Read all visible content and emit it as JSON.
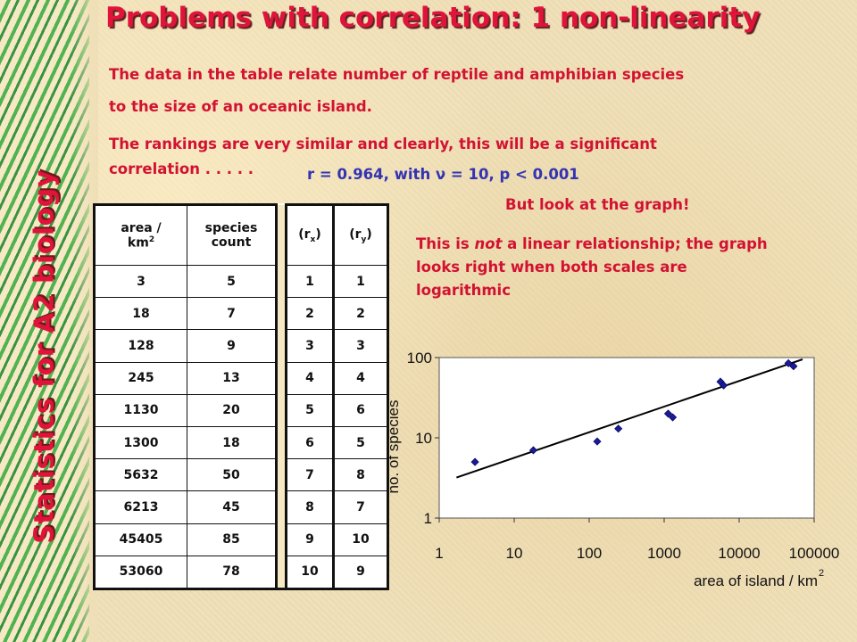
{
  "slide": {
    "title": "Problems with correlation: 1 non-linearity",
    "side_title": "Statistics for A2 biology",
    "para1_line1": "The data in the table relate number of reptile and amphibian species",
    "para1_line2": "to the size of an oceanic island.",
    "para2_line1": "The rankings are very similar and clearly, this will be a significant",
    "para2_line2": "correlation . . . . .",
    "stat": "r =  0.964, with ν = 10, p < 0.001",
    "look": "But look at the graph!",
    "note_line1": "This is not a linear relationship; the graph",
    "note_line2": "looks right when both scales are",
    "note_line3": "logarithmic",
    "colors": {
      "title": "#e0143a",
      "body": "#d21232",
      "stat": "#3333b3",
      "stripes": "#2f8f3a"
    }
  },
  "table": {
    "headers": {
      "area_top": "area /",
      "area_unit": "km",
      "area_sup": "2",
      "species_top": "species",
      "species_bottom": "count",
      "rx": "(r",
      "rx_sub": "x",
      "rx_close": ")",
      "ry": "(r",
      "ry_sub": "y",
      "ry_close": ")"
    },
    "rows": [
      [
        "3",
        "5",
        "1",
        "1"
      ],
      [
        "18",
        "7",
        "2",
        "2"
      ],
      [
        "128",
        "9",
        "3",
        "3"
      ],
      [
        "245",
        "13",
        "4",
        "4"
      ],
      [
        "1130",
        "20",
        "5",
        "6"
      ],
      [
        "1300",
        "18",
        "6",
        "5"
      ],
      [
        "5632",
        "50",
        "7",
        "8"
      ],
      [
        "6213",
        "45",
        "8",
        "7"
      ],
      [
        "45405",
        "85",
        "9",
        "10"
      ],
      [
        "53060",
        "78",
        "10",
        "9"
      ]
    ]
  },
  "chart_data": {
    "type": "scatter",
    "xscale": "log",
    "yscale": "log",
    "xlabel": "area of island / km",
    "xlabel_sup": "2",
    "ylabel": "no. of species",
    "xlim": [
      1,
      100000
    ],
    "ylim": [
      1,
      100
    ],
    "xticks": [
      "1",
      "10",
      "100",
      "1000",
      "10000",
      "100000"
    ],
    "yticks": [
      "1",
      "10",
      "100"
    ],
    "points": [
      {
        "x": 3,
        "y": 5
      },
      {
        "x": 18,
        "y": 7
      },
      {
        "x": 128,
        "y": 9
      },
      {
        "x": 245,
        "y": 13
      },
      {
        "x": 1130,
        "y": 20
      },
      {
        "x": 1300,
        "y": 18
      },
      {
        "x": 5632,
        "y": 50
      },
      {
        "x": 6213,
        "y": 45
      },
      {
        "x": 45405,
        "y": 85
      },
      {
        "x": 53060,
        "y": 78
      }
    ],
    "trendline": [
      {
        "x": 1.7,
        "y": 3.2
      },
      {
        "x": 70000,
        "y": 95
      }
    ],
    "marker_color": "#1a1a9c",
    "line_color": "#000000"
  }
}
